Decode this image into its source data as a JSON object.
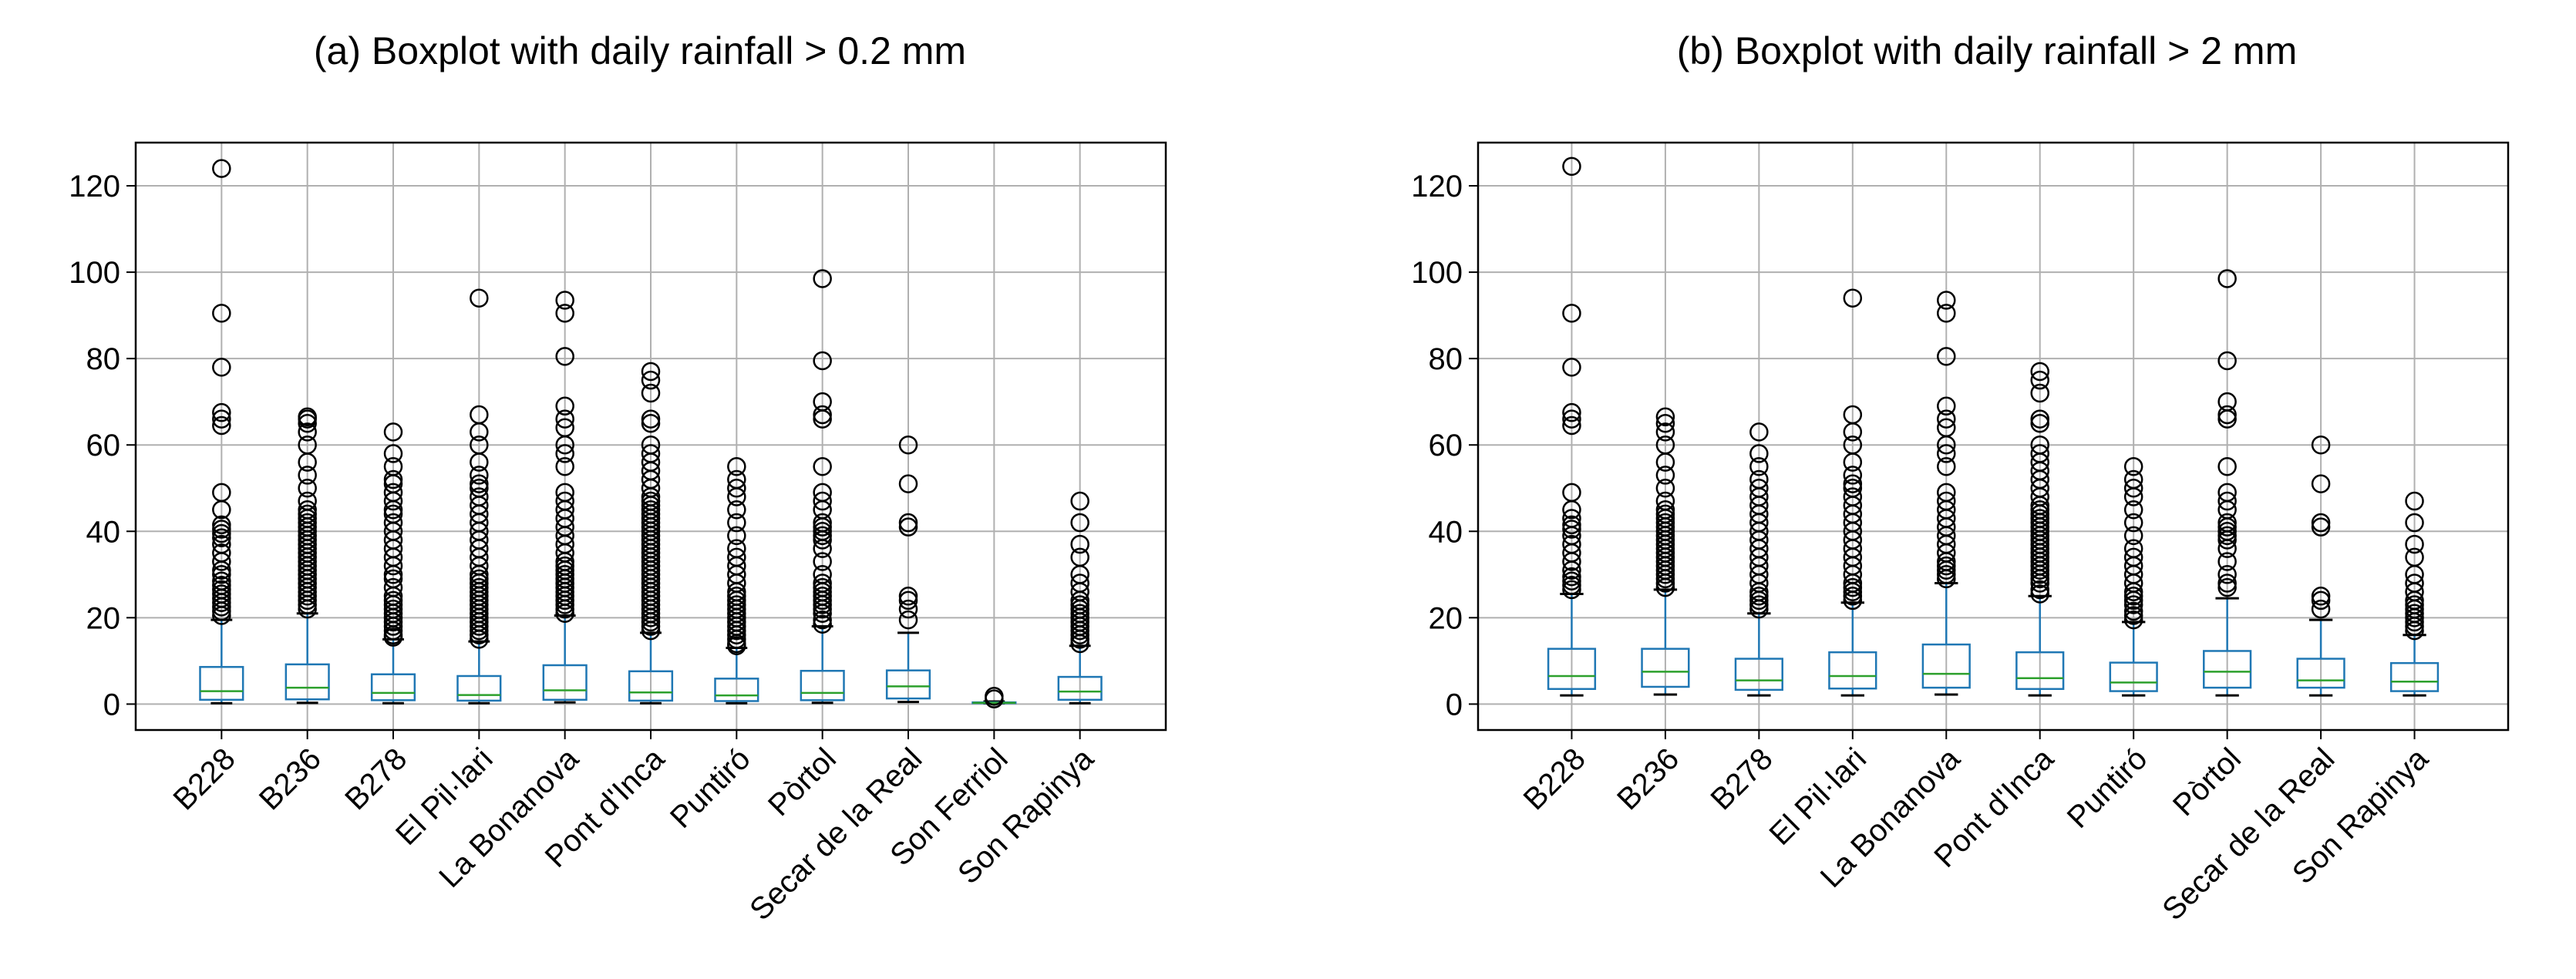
{
  "colors": {
    "box": "#1f77b4",
    "median": "#2ca02c",
    "whisker": "#1f77b4",
    "cap": "#000000",
    "flier": "#000000",
    "grid": "#b0b0b0",
    "axis": "#000000"
  },
  "chart_data": [
    {
      "type": "box",
      "title": "(a) Boxplot with daily rainfall > 0.2 mm",
      "xlabel": "",
      "ylabel": "",
      "ylim": [
        -6,
        130
      ],
      "yticks": [
        0,
        20,
        40,
        60,
        80,
        100,
        120
      ],
      "grid": true,
      "categories": [
        "B228",
        "B236",
        "B278",
        "El Pil·lari",
        "La Bonanova",
        "Pont d'Inca",
        "Puntiró",
        "Pòrtol",
        "Secar de la Real",
        "Son Ferriol",
        "Son Rapinya"
      ],
      "boxes": [
        {
          "name": "B228",
          "whislo": 0.2,
          "q1": 1.0,
          "med": 3.0,
          "q3": 8.6,
          "whishi": 19.5,
          "fliers": [
            20.5,
            21.5,
            22.5,
            23.5,
            24.5,
            25.5,
            26.5,
            27.5,
            28.5,
            30,
            31,
            33,
            35,
            37,
            38.5,
            39.5,
            40.5,
            41.5,
            45,
            49,
            64.5,
            66,
            67.5,
            78,
            90.5,
            124
          ]
        },
        {
          "name": "B236",
          "whislo": 0.3,
          "q1": 1.1,
          "med": 3.8,
          "q3": 9.2,
          "whishi": 21,
          "fliers": [
            22,
            23,
            24,
            25,
            26,
            27,
            28,
            29,
            30,
            31,
            32,
            33,
            34,
            35,
            36,
            37,
            38,
            39,
            40,
            41,
            42,
            43,
            44,
            45,
            47,
            50,
            53,
            56,
            60,
            63,
            65,
            66,
            66.5
          ]
        },
        {
          "name": "B278",
          "whislo": 0.2,
          "q1": 0.9,
          "med": 2.6,
          "q3": 6.9,
          "whishi": 15,
          "fliers": [
            15.5,
            16,
            17,
            18,
            19,
            20,
            21,
            22,
            23,
            24,
            25,
            27,
            29,
            30,
            32,
            34,
            36,
            38,
            40,
            42,
            44,
            45,
            47,
            49,
            51,
            52,
            55,
            58,
            63
          ]
        },
        {
          "name": "El Pil·lari",
          "whislo": 0.2,
          "q1": 0.8,
          "med": 2.1,
          "q3": 6.5,
          "whishi": 14.5,
          "fliers": [
            15,
            16,
            17,
            18,
            19,
            20,
            21,
            22,
            23,
            24,
            25,
            26,
            27,
            28,
            29,
            30,
            32,
            34,
            36,
            38,
            40,
            42,
            44,
            46,
            48,
            50,
            51,
            53,
            56,
            60,
            63,
            67,
            94
          ]
        },
        {
          "name": "La Bonanova",
          "whislo": 0.4,
          "q1": 1.0,
          "med": 3.2,
          "q3": 9.0,
          "whishi": 20.5,
          "fliers": [
            21,
            22,
            23,
            24,
            25,
            26,
            27,
            28,
            29,
            30,
            31,
            32,
            33,
            35,
            37,
            39,
            41,
            43,
            45,
            47,
            49,
            55,
            58,
            60,
            64,
            66,
            69,
            80.5,
            90.5,
            93.5
          ]
        },
        {
          "name": "Pont d'Inca",
          "whislo": 0.2,
          "q1": 0.8,
          "med": 2.7,
          "q3": 7.6,
          "whishi": 16.5,
          "fliers": [
            17,
            18,
            19,
            20,
            21,
            22,
            23,
            24,
            25,
            26,
            27,
            28,
            29,
            30,
            31,
            32,
            33,
            34,
            35,
            36,
            37,
            38,
            39,
            40,
            41,
            42,
            43,
            44,
            45,
            46,
            47,
            48,
            50,
            52,
            54,
            56,
            58,
            60,
            65,
            66,
            72,
            75,
            77
          ]
        },
        {
          "name": "Puntiró",
          "whislo": 0.2,
          "q1": 0.7,
          "med": 2.0,
          "q3": 5.9,
          "whishi": 13,
          "fliers": [
            13.5,
            14,
            15,
            16,
            17,
            18,
            19,
            20,
            21,
            22,
            23,
            24,
            25,
            26,
            28,
            30,
            32,
            34,
            36,
            39,
            42,
            45,
            48,
            50,
            52,
            55
          ]
        },
        {
          "name": "Pòrtol",
          "whislo": 0.3,
          "q1": 0.9,
          "med": 2.6,
          "q3": 7.7,
          "whishi": 18,
          "fliers": [
            18.5,
            19.5,
            21,
            22,
            23,
            24,
            25,
            26,
            27,
            28,
            30,
            33,
            36,
            38,
            39,
            40,
            41,
            42,
            45,
            47,
            49,
            55,
            66,
            67,
            70,
            79.5,
            98.5
          ]
        },
        {
          "name": "Secar de la Real",
          "whislo": 0.5,
          "q1": 1.3,
          "med": 4.1,
          "q3": 7.8,
          "whishi": 16.5,
          "fliers": [
            19.5,
            22,
            24,
            25,
            41,
            42,
            51,
            60
          ]
        },
        {
          "name": "Son Ferriol",
          "whislo": 0.2,
          "q1": 0.25,
          "med": 0.3,
          "q3": 0.4,
          "whishi": 0.6,
          "fliers": [
            1.2,
            1.8
          ]
        },
        {
          "name": "Son Rapinya",
          "whislo": 0.2,
          "q1": 1.0,
          "med": 2.9,
          "q3": 6.3,
          "whishi": 13.5,
          "fliers": [
            14,
            15,
            16,
            17,
            18,
            19,
            20,
            21,
            22,
            23,
            24,
            26,
            28,
            30,
            34,
            37,
            42,
            47
          ]
        }
      ]
    },
    {
      "type": "box",
      "title": "(b) Boxplot with daily rainfall > 2 mm",
      "xlabel": "",
      "ylabel": "",
      "ylim": [
        -6,
        130
      ],
      "yticks": [
        0,
        20,
        40,
        60,
        80,
        100,
        120
      ],
      "grid": true,
      "categories": [
        "B228",
        "B236",
        "B278",
        "El Pil·lari",
        "La Bonanova",
        "Pont d'Inca",
        "Puntiró",
        "Pòrtol",
        "Secar de la Real",
        "Son Rapinya"
      ],
      "boxes": [
        {
          "name": "B228",
          "whislo": 2,
          "q1": 3.5,
          "med": 6.5,
          "q3": 12.8,
          "whishi": 25.5,
          "fliers": [
            26.5,
            27.5,
            28.5,
            29.5,
            31,
            33,
            35,
            37,
            39,
            40.5,
            41.5,
            43,
            45,
            49,
            64.5,
            66,
            67.5,
            78,
            90.5,
            124.5
          ]
        },
        {
          "name": "B236",
          "whislo": 2.2,
          "q1": 4.0,
          "med": 7.5,
          "q3": 12.8,
          "whishi": 26.5,
          "fliers": [
            27,
            28,
            29,
            30,
            31,
            32,
            33,
            34,
            35,
            36,
            37,
            38,
            39,
            40,
            41,
            42,
            43,
            44,
            45,
            47,
            50,
            53,
            56,
            60,
            63,
            65,
            66.5
          ]
        },
        {
          "name": "B278",
          "whislo": 2,
          "q1": 3.3,
          "med": 5.5,
          "q3": 10.5,
          "whishi": 21,
          "fliers": [
            22,
            23,
            24,
            25,
            26,
            28,
            30,
            32,
            34,
            36,
            38,
            40,
            42,
            44,
            46,
            48,
            50,
            52,
            55,
            58,
            63
          ]
        },
        {
          "name": "El Pil·lari",
          "whislo": 2,
          "q1": 3.6,
          "med": 6.5,
          "q3": 12.0,
          "whishi": 23.5,
          "fliers": [
            24,
            25,
            26,
            27,
            28,
            30,
            32,
            34,
            36,
            38,
            40,
            42,
            44,
            46,
            48,
            50,
            51,
            53,
            56,
            60,
            63,
            67,
            94
          ]
        },
        {
          "name": "La Bonanova",
          "whislo": 2.2,
          "q1": 3.8,
          "med": 7.0,
          "q3": 13.8,
          "whishi": 28,
          "fliers": [
            29,
            30,
            31,
            32,
            33,
            35,
            37,
            39,
            41,
            43,
            45,
            47,
            49,
            55,
            58,
            60,
            64,
            66,
            69,
            80.5,
            90.5,
            93.5
          ]
        },
        {
          "name": "Pont d'Inca",
          "whislo": 2,
          "q1": 3.5,
          "med": 6.0,
          "q3": 12.0,
          "whishi": 25,
          "fliers": [
            25.5,
            26.5,
            28,
            29,
            30,
            31,
            32,
            33,
            34,
            35,
            36,
            37,
            38,
            39,
            40,
            41,
            42,
            43,
            44,
            45,
            46,
            48,
            50,
            52,
            54,
            56,
            58,
            60,
            65,
            66,
            72,
            75,
            77
          ]
        },
        {
          "name": "Puntiró",
          "whislo": 2,
          "q1": 3.0,
          "med": 5.0,
          "q3": 9.6,
          "whishi": 19,
          "fliers": [
            19.5,
            20.5,
            21.5,
            23,
            24,
            25,
            26,
            28,
            30,
            32,
            34,
            36,
            39,
            42,
            45,
            48,
            50,
            52,
            55
          ]
        },
        {
          "name": "Pòrtol",
          "whislo": 2,
          "q1": 3.8,
          "med": 7.5,
          "q3": 12.3,
          "whishi": 24.5,
          "fliers": [
            27,
            28,
            30,
            33,
            36,
            38,
            39,
            40,
            41,
            42,
            45,
            47,
            49,
            55,
            66,
            67,
            70,
            79.5,
            98.5
          ]
        },
        {
          "name": "Secar de la Real",
          "whislo": 2,
          "q1": 3.8,
          "med": 5.5,
          "q3": 10.5,
          "whishi": 19.5,
          "fliers": [
            22,
            24,
            25,
            41,
            42,
            51,
            60
          ]
        },
        {
          "name": "Son Rapinya",
          "whislo": 2,
          "q1": 3.0,
          "med": 5.2,
          "q3": 9.5,
          "whishi": 16,
          "fliers": [
            17,
            18,
            19,
            20,
            21,
            22,
            23,
            24,
            26,
            28,
            30,
            34,
            37,
            42,
            47
          ]
        }
      ]
    }
  ]
}
